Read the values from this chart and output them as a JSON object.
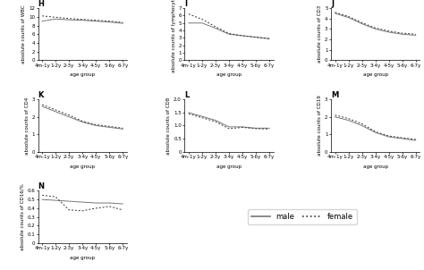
{
  "age_labels": [
    "4m-1y",
    "1-2y",
    "2-3y",
    "3-4y",
    "4-5y",
    "5-6y",
    "6-7y"
  ],
  "panels": {
    "H": {
      "title": "H",
      "ylabel": "absolute counts of WBC",
      "ylim": [
        0,
        12
      ],
      "yticks": [
        0,
        2,
        4,
        6,
        8,
        10,
        12
      ],
      "male": [
        9.0,
        9.5,
        9.3,
        9.2,
        9.0,
        8.8,
        8.5
      ],
      "female": [
        10.2,
        9.9,
        9.6,
        9.4,
        9.2,
        9.0,
        8.7
      ]
    },
    "I": {
      "title": "I",
      "ylabel": "absolute counts of lymphocyte",
      "ylim": [
        0,
        7
      ],
      "yticks": [
        0,
        1,
        2,
        3,
        4,
        5,
        6,
        7
      ],
      "male": [
        5.0,
        5.0,
        4.3,
        3.5,
        3.3,
        3.1,
        2.9
      ],
      "female": [
        6.2,
        5.5,
        4.5,
        3.6,
        3.3,
        3.1,
        2.9
      ]
    },
    "J": {
      "title": "J",
      "ylabel": "absolute counts of CD3",
      "ylim": [
        0,
        5
      ],
      "yticks": [
        0,
        1,
        2,
        3,
        4,
        5
      ],
      "male": [
        4.5,
        4.1,
        3.5,
        3.0,
        2.7,
        2.5,
        2.4
      ],
      "female": [
        4.6,
        4.2,
        3.6,
        3.1,
        2.8,
        2.6,
        2.5
      ]
    },
    "K": {
      "title": "K",
      "ylabel": "absolute counts of CD4",
      "ylim": [
        0,
        3
      ],
      "yticks": [
        0,
        1,
        2,
        3
      ],
      "male": [
        2.6,
        2.3,
        2.0,
        1.7,
        1.5,
        1.4,
        1.3
      ],
      "female": [
        2.7,
        2.4,
        2.1,
        1.75,
        1.55,
        1.45,
        1.35
      ]
    },
    "L": {
      "title": "L",
      "ylabel": "absolute counts of CD8",
      "ylim": [
        0,
        2
      ],
      "yticks": [
        0,
        0.5,
        1.0,
        1.5,
        2.0
      ],
      "male": [
        1.5,
        1.35,
        1.2,
        0.95,
        0.95,
        0.9,
        0.9
      ],
      "female": [
        1.45,
        1.3,
        1.15,
        0.88,
        0.93,
        0.88,
        0.87
      ]
    },
    "M": {
      "title": "M",
      "ylabel": "absolute counts of CD19",
      "ylim": [
        0,
        3
      ],
      "yticks": [
        0,
        1,
        2,
        3
      ],
      "male": [
        2.0,
        1.8,
        1.5,
        1.1,
        0.85,
        0.75,
        0.65
      ],
      "female": [
        2.1,
        1.9,
        1.6,
        1.15,
        0.9,
        0.8,
        0.7
      ]
    },
    "N": {
      "title": "N",
      "ylabel": "absolute counts of CD16/%",
      "ylim": [
        0,
        0.6
      ],
      "yticks": [
        0,
        0.1,
        0.2,
        0.3,
        0.4,
        0.5,
        0.6
      ],
      "male": [
        0.5,
        0.49,
        0.48,
        0.47,
        0.46,
        0.46,
        0.45
      ],
      "female": [
        0.55,
        0.53,
        0.38,
        0.37,
        0.4,
        0.42,
        0.38
      ]
    }
  },
  "male_color": "#777777",
  "female_color": "#333333",
  "male_ls": "solid",
  "female_ls": "dotted",
  "linewidth": 0.7,
  "xlabel": "age group",
  "tick_fontsize": 4,
  "label_fontsize": 4,
  "title_fontsize": 6
}
